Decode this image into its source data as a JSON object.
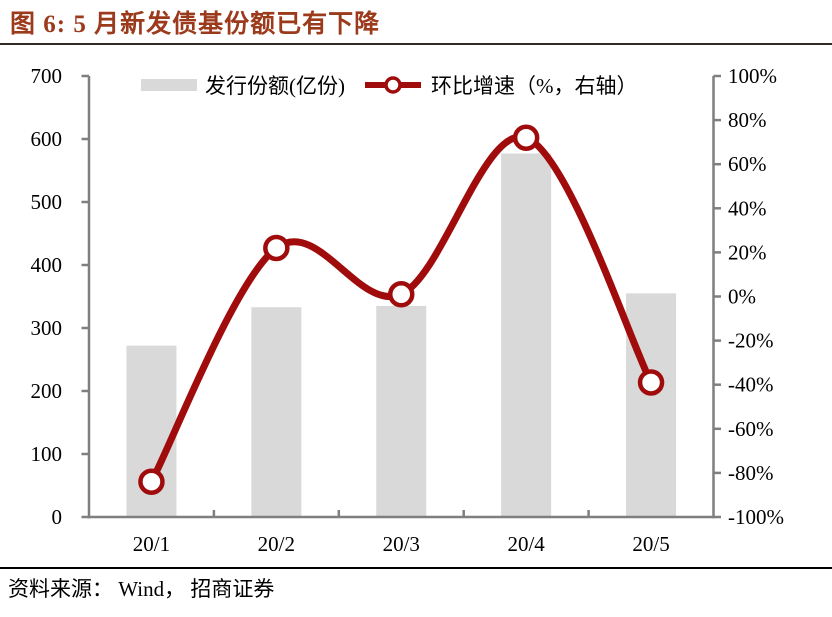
{
  "title": "图 6: 5 月新发债基份额已有下降",
  "source": "资料来源： Wind， 招商证券",
  "legend": {
    "bar_label": "发行份额(亿份)",
    "line_label": "环比增速（%，右轴）"
  },
  "colors": {
    "title_red": "#9C3A1C",
    "line_red": "#A00C0C",
    "bar_gray": "#D9D9D9",
    "axis_gray": "#7F7F7F",
    "text_black": "#000000"
  },
  "chart_data": {
    "type": "bar",
    "subtype": "bar+line-combo",
    "title": "图 6: 5 月新发债基份额已有下降",
    "categories": [
      "20/1",
      "20/2",
      "20/3",
      "20/4",
      "20/5"
    ],
    "series": [
      {
        "name": "发行份额(亿份)",
        "chart_type": "bar",
        "axis": "left",
        "values": [
          272,
          333,
          335,
          577,
          355
        ]
      },
      {
        "name": "环比增速（%，右轴）",
        "chart_type": "line",
        "axis": "right",
        "unit": "%",
        "values": [
          -84,
          22,
          1,
          72,
          -39
        ]
      }
    ],
    "left_axis": {
      "min": 0,
      "max": 700,
      "step": 100,
      "tick_labels": [
        "0",
        "100",
        "200",
        "300",
        "400",
        "500",
        "600",
        "700"
      ]
    },
    "right_axis": {
      "min": -100,
      "max": 100,
      "step": 20,
      "tick_labels": [
        "-100%",
        "-80%",
        "-60%",
        "-40%",
        "-20%",
        "0%",
        "20%",
        "40%",
        "60%",
        "80%",
        "100%"
      ]
    },
    "grid": false,
    "legend_position": "top",
    "smooth_line": true
  }
}
